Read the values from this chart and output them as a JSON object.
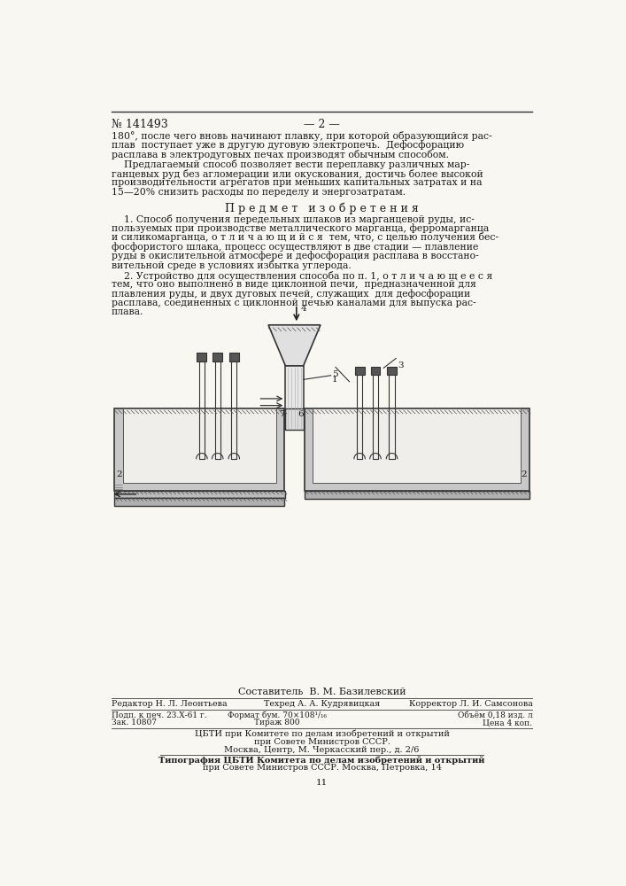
{
  "patent_number": "№ 141493",
  "page_number": "— 2 —",
  "background_color": "#f8f7f2",
  "text_color": "#1a1a1a",
  "para1_lines": [
    "180°, после чего вновь начинают плавку, при которой образующийся рас-",
    "плав  поступает уже в другую дуговую электропечь.  Дефосфорацию",
    "расплава в электродуговых печах производят обычным способом."
  ],
  "para2_lines": [
    "    Предлагаемый способ позволяет вести переплавку различных мар-",
    "ганцевых руд без агломерации или окускования, достичь более высокой",
    "производительности агрегатов при меньших капитальных затратах и на",
    "15—20% снизить расходы по переделу и энергозатратам."
  ],
  "section_title": "П р е д м е т   и з о б р е т е н и я",
  "claim1_lines": [
    "    1. Способ получения передельных шлаков из марганцевой руды, ис-",
    "пользуемых при производстве металлического марганца, ферромарганца",
    "и силикомарганца, о т л и ч а ю щ и й с я  тем, что, с целью получения бес-",
    "фосфористого шлака, процесс осуществляют в две стадии — плавление",
    "руды в окислительной атмосфере и дефосфорация расплава в восстано-",
    "вительной среде в условиях избытка углерода."
  ],
  "claim2_lines": [
    "    2. Устройство для осуществления способа по п. 1, о т л и ч а ю щ е е с я",
    "тем, что оно выполнено в виде циклонной печи,  предназначенной для",
    "плавления руды, и двух дуговых печей, служащих  для дефосфорации",
    "расплава, соединенных с циклонной печью каналами для выпуска рас-",
    "плава."
  ],
  "composer_line": "Составитель  В. М. Базилевский",
  "editor_label": "Редактор Н. Л. Леонтьева",
  "tech_label": "Техред А. А. Кудрявицкая",
  "corrector_label": "Корректор Л. И. Самсонова",
  "submit_line": "Подп. к печ. 23.Х-61 г.",
  "format_line": "Формат бум. 70×108¹/₁₆",
  "volume_line": "Объём 0,18 изд. л",
  "order_line": "Зак. 10807",
  "edition_line": "Тираж 800",
  "price_line": "Цена 4 коп.",
  "publisher1": "ЦБТИ при Комитете по делам изобретений и открытий",
  "publisher2": "при Совете Министров СССР.",
  "publisher3": "Москва, Центр, М. Черкасский пер., д. 2/6",
  "printer1": "Типография ЦБТИ Комитета по делам изобретений и открытий",
  "printer2": "при Совете Министров СССР. Москва, Петровка, 14",
  "page_num": "11"
}
